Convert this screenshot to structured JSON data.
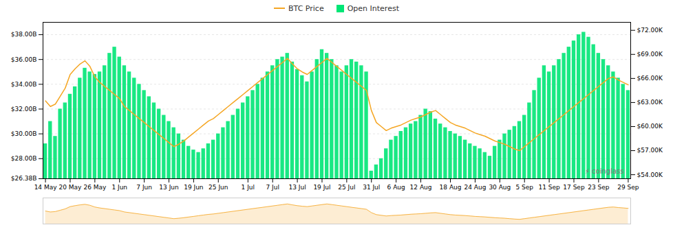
{
  "chart_data": {
    "type": "bar",
    "categories": [
      "14 May",
      null,
      null,
      null,
      null,
      "20 May",
      null,
      null,
      null,
      null,
      "26 May",
      null,
      null,
      null,
      null,
      "1 Jun",
      null,
      null,
      null,
      null,
      "7 Jun",
      null,
      null,
      null,
      null,
      "13 Jun",
      null,
      null,
      null,
      null,
      "19 Jun",
      null,
      null,
      null,
      null,
      "25 Jun",
      null,
      null,
      null,
      null,
      null,
      "1 Jul",
      null,
      null,
      null,
      null,
      "7 Jul",
      null,
      null,
      null,
      null,
      "13 Jul",
      null,
      null,
      null,
      null,
      "19 Jul",
      null,
      null,
      null,
      null,
      "25 Jul",
      null,
      null,
      null,
      null,
      "31 Jul",
      null,
      null,
      null,
      null,
      "6 Aug",
      null,
      null,
      null,
      null,
      "12 Aug",
      null,
      null,
      null,
      null,
      null,
      "18 Aug",
      null,
      null,
      null,
      null,
      "24 Aug",
      null,
      null,
      null,
      null,
      "30 Aug",
      null,
      null,
      null,
      null,
      "5 Sep",
      null,
      null,
      null,
      null,
      "11 Sep",
      null,
      null,
      null,
      null,
      "17 Sep",
      null,
      null,
      null,
      null,
      "23 Sep",
      null,
      null,
      null,
      null,
      null,
      "29 Sep"
    ],
    "series": [
      {
        "name": "BTC Price",
        "type": "line",
        "axis": "y2",
        "color": "#f5a623",
        "values": [
          63200,
          62500,
          62800,
          63800,
          64800,
          66500,
          67200,
          67800,
          68200,
          67500,
          66200,
          65500,
          65000,
          64500,
          64000,
          63500,
          62500,
          62000,
          61500,
          61000,
          60500,
          60000,
          59500,
          59000,
          58500,
          58000,
          57500,
          57800,
          58200,
          58700,
          59200,
          59700,
          60200,
          60700,
          61000,
          61500,
          62000,
          62500,
          63000,
          63500,
          64000,
          64500,
          65000,
          65500,
          66000,
          66500,
          67000,
          67500,
          68000,
          68500,
          67800,
          67200,
          66800,
          66500,
          67000,
          67500,
          68000,
          68500,
          68000,
          67500,
          67000,
          66500,
          66000,
          65500,
          65000,
          64500,
          62000,
          60500,
          60000,
          59500,
          59800,
          60000,
          60200,
          60500,
          60800,
          61000,
          61200,
          61500,
          61800,
          62000,
          61500,
          61000,
          60500,
          60200,
          60000,
          59800,
          59500,
          59200,
          59000,
          58800,
          58500,
          58200,
          58000,
          57800,
          57500,
          57200,
          57000,
          57500,
          58000,
          58500,
          59000,
          59500,
          60000,
          60500,
          61000,
          61500,
          62000,
          62500,
          63000,
          63500,
          64000,
          64500,
          65000,
          65500,
          66000,
          66200,
          65800,
          65500,
          65200
        ]
      },
      {
        "name": "Open Interest",
        "type": "bar",
        "color": "#00e676",
        "values": [
          29200000000,
          31000000000,
          29800000000,
          32000000000,
          32500000000,
          33200000000,
          33800000000,
          34500000000,
          35300000000,
          35000000000,
          34800000000,
          35000000000,
          35500000000,
          36500000000,
          37000000000,
          36200000000,
          35500000000,
          35000000000,
          34500000000,
          34000000000,
          33500000000,
          33000000000,
          32500000000,
          32000000000,
          31500000000,
          31000000000,
          30500000000,
          30000000000,
          29500000000,
          29000000000,
          28700000000,
          28500000000,
          28800000000,
          29200000000,
          29500000000,
          30000000000,
          30500000000,
          31000000000,
          31500000000,
          32000000000,
          32500000000,
          33000000000,
          33500000000,
          34000000000,
          34500000000,
          35000000000,
          35500000000,
          36000000000,
          36200000000,
          36500000000,
          35800000000,
          35200000000,
          34700000000,
          34200000000,
          35000000000,
          36000000000,
          36800000000,
          36500000000,
          36000000000,
          35500000000,
          35000000000,
          35500000000,
          36000000000,
          35800000000,
          35500000000,
          35000000000,
          27000000000,
          27500000000,
          28000000000,
          28800000000,
          29500000000,
          29800000000,
          30200000000,
          30500000000,
          30800000000,
          31000000000,
          31500000000,
          32000000000,
          31800000000,
          31200000000,
          30800000000,
          30500000000,
          30200000000,
          30000000000,
          29800000000,
          29500000000,
          29200000000,
          29000000000,
          28800000000,
          28500000000,
          28200000000,
          29000000000,
          29500000000,
          30000000000,
          30300000000,
          30600000000,
          31000000000,
          31500000000,
          32500000000,
          33500000000,
          34500000000,
          35500000000,
          35000000000,
          35500000000,
          36000000000,
          36500000000,
          37000000000,
          37500000000,
          38000000000,
          38200000000,
          37800000000,
          37200000000,
          36500000000,
          36000000000,
          35500000000,
          35000000000,
          34500000000,
          34000000000,
          33500000000
        ]
      }
    ],
    "ylim": [
      26380000000,
      39000000000
    ],
    "yticks": [
      {
        "value": 26380000000,
        "label": "$26.38B"
      },
      {
        "value": 28000000000,
        "label": "$28.00B"
      },
      {
        "value": 30000000000,
        "label": "$30.00B"
      },
      {
        "value": 32000000000,
        "label": "$32.00B"
      },
      {
        "value": 34000000000,
        "label": "$34.00B"
      },
      {
        "value": 36000000000,
        "label": "$36.00B"
      },
      {
        "value": 38000000000,
        "label": "$38.00B"
      }
    ],
    "y2lim": [
      53500,
      73000
    ],
    "y2ticks": [
      {
        "value": 54000,
        "label": "$54.00K"
      },
      {
        "value": 57000,
        "label": "$57.00K"
      },
      {
        "value": 60000,
        "label": "$60.00K"
      },
      {
        "value": 63000,
        "label": "$63.00K"
      },
      {
        "value": 66000,
        "label": "$66.00K"
      },
      {
        "value": 69000,
        "label": "$69.00K"
      },
      {
        "value": 72000,
        "label": "$72.00K"
      }
    ],
    "grid": true,
    "legend": "top",
    "annotations": [
      "⚡ coinglass"
    ]
  }
}
